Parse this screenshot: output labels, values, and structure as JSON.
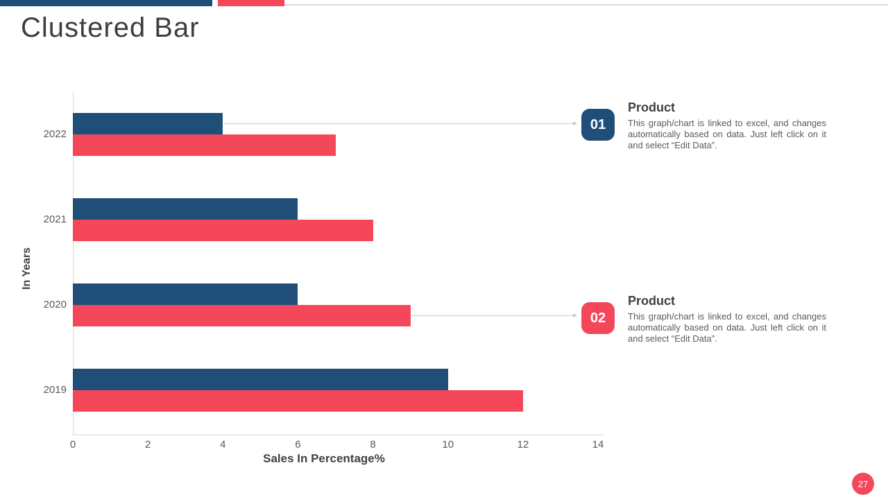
{
  "slide": {
    "title": "Clustered Bar",
    "page_number": "27"
  },
  "colors": {
    "navy": "#1F4E79",
    "red": "#F4485A",
    "axis_gray": "#D9D9D9",
    "connector_gray": "#C9C9C9",
    "text_dark": "#3D3D3D",
    "text_heading": "#404040",
    "text_body": "#595959",
    "tick_gray": "#595959"
  },
  "chart_data": {
    "type": "bar",
    "orientation": "horizontal",
    "title": "",
    "categories": [
      "2022",
      "2021",
      "2020",
      "2019"
    ],
    "series": [
      {
        "name": "Product 01",
        "color": "#1F4E79",
        "values": [
          4,
          6,
          6,
          10
        ]
      },
      {
        "name": "Product 02",
        "color": "#F4485A",
        "values": [
          7,
          8,
          9,
          12
        ]
      }
    ],
    "xlabel": "Sales In Percentage%",
    "ylabel": "In Years",
    "xlim": [
      0,
      14
    ],
    "xticks": [
      0,
      2,
      4,
      6,
      8,
      10,
      12,
      14
    ],
    "grid": false,
    "legend": "none"
  },
  "callouts": [
    {
      "number": "01",
      "title": "Product",
      "body": "This graph/chart is linked to excel, and changes automatically based on data. Just left click on it and select “Edit Data”.",
      "color": "#1F4E79",
      "arrow_from": {
        "category": "2022",
        "series": 0
      }
    },
    {
      "number": "02",
      "title": "Product",
      "body": "This graph/chart is linked to excel, and changes automatically based on data. Just left click on it and select “Edit Data”.",
      "color": "#F4485A",
      "arrow_from": {
        "category": "2020",
        "series": 1
      }
    }
  ]
}
